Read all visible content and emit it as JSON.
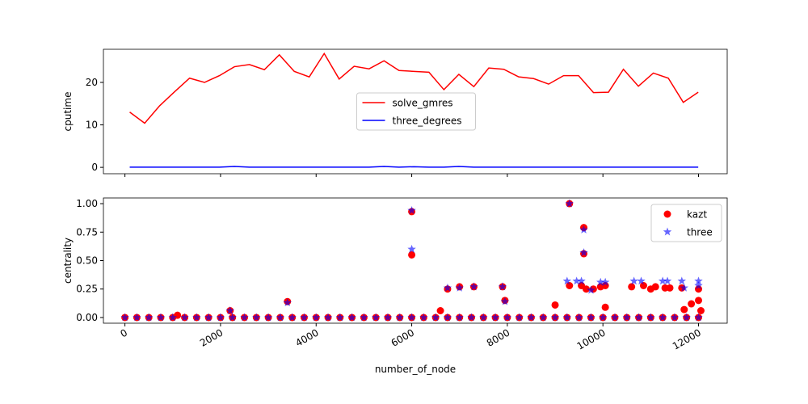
{
  "chart_data": [
    {
      "type": "line",
      "ylabel": "cputime",
      "legend": "center",
      "x": [
        100,
        413,
        726,
        1039,
        1352,
        1665,
        1978,
        2291,
        2604,
        2917,
        3230,
        3543,
        3856,
        4169,
        4482,
        4795,
        5108,
        5421,
        5734,
        6047,
        6360,
        6673,
        6986,
        7299,
        7612,
        7925,
        8238,
        8551,
        8864,
        9177,
        9490,
        9803,
        10116,
        10429,
        10742,
        11055,
        11368,
        11681,
        11994
      ],
      "series": [
        {
          "name": "solve_gmres",
          "color": "#ff0000",
          "values": [
            13,
            10.4,
            14.5,
            17.8,
            21,
            20,
            21.6,
            23.7,
            24.2,
            23,
            26.5,
            22.6,
            21.3,
            26.8,
            20.8,
            23.8,
            23.2,
            25.1,
            22.8,
            22.6,
            22.4,
            18.3,
            21.9,
            19,
            23.4,
            23.1,
            21.3,
            20.9,
            19.6,
            21.6,
            21.6,
            17.6,
            17.7,
            23.1,
            19.1,
            22.2,
            21,
            15.3,
            17.7
          ]
        },
        {
          "name": "three_degrees",
          "color": "#0000ff",
          "values": [
            0.05,
            0.05,
            0.05,
            0.05,
            0.05,
            0.05,
            0.05,
            0.2,
            0.05,
            0.05,
            0.05,
            0.05,
            0.05,
            0.05,
            0.05,
            0.05,
            0.05,
            0.2,
            0.05,
            0.15,
            0.05,
            0.05,
            0.2,
            0.05,
            0.05,
            0.05,
            0.05,
            0.05,
            0.05,
            0.05,
            0.05,
            0.05,
            0.05,
            0.05,
            0.05,
            0.05,
            0.05,
            0.05,
            0.05
          ]
        }
      ],
      "xlim": [
        -450,
        12600
      ],
      "xticks": [
        0,
        2000,
        4000,
        6000,
        8000,
        10000,
        12000
      ],
      "ylim": [
        -1.5,
        27.8
      ],
      "yticks": [
        0,
        10,
        20
      ]
    },
    {
      "type": "scatter",
      "xlabel": "number_of_node",
      "ylabel": "centrality",
      "legend": "upper right",
      "series": [
        {
          "name": "kazt",
          "color": "#ff0000",
          "marker": "circle",
          "x": [
            0,
            250,
            500,
            750,
            1000,
            1250,
            1500,
            1750,
            2000,
            2250,
            2500,
            2750,
            3000,
            3250,
            3500,
            3750,
            4000,
            4250,
            4500,
            4750,
            5000,
            5250,
            5500,
            5750,
            6000,
            6250,
            6500,
            6750,
            7000,
            7250,
            7500,
            7750,
            8000,
            8250,
            8500,
            8750,
            9000,
            9250,
            9500,
            9750,
            10000,
            10250,
            10500,
            10750,
            11000,
            11250,
            11500,
            11750,
            12000,
            1100,
            2200,
            3400,
            6000,
            6000,
            6600,
            6750,
            7000,
            7300,
            7900,
            7950,
            9000,
            9300,
            9300,
            9550,
            9600,
            9600,
            9650,
            9800,
            9950,
            10050,
            10050,
            10600,
            10850,
            11000,
            11100,
            11300,
            11400,
            11650,
            11700,
            11850,
            12000,
            12000,
            12050
          ],
          "values": [
            0,
            0,
            0,
            0,
            0,
            0,
            0,
            0,
            0,
            0,
            0,
            0,
            0,
            0,
            0,
            0,
            0,
            0,
            0,
            0,
            0,
            0,
            0,
            0,
            0,
            0,
            0,
            0,
            0,
            0,
            0,
            0,
            0,
            0,
            0,
            0,
            0,
            0,
            0,
            0,
            0,
            0,
            0,
            0,
            0,
            0,
            0,
            0,
            0,
            0.02,
            0.06,
            0.14,
            0.93,
            0.55,
            0.06,
            0.25,
            0.27,
            0.27,
            0.27,
            0.15,
            0.11,
            1.0,
            0.28,
            0.28,
            0.79,
            0.56,
            0.25,
            0.25,
            0.27,
            0.28,
            0.09,
            0.27,
            0.28,
            0.25,
            0.27,
            0.26,
            0.26,
            0.26,
            0.07,
            0.12,
            0.25,
            0.15,
            0.06
          ]
        },
        {
          "name": "three",
          "color": "#0000ff",
          "marker": "star",
          "x": [
            0,
            250,
            500,
            750,
            1000,
            1250,
            1500,
            1750,
            2000,
            2250,
            2500,
            2750,
            3000,
            3250,
            3500,
            3750,
            4000,
            4250,
            4500,
            4750,
            5000,
            5250,
            5500,
            5750,
            6000,
            6250,
            6500,
            6750,
            7000,
            7250,
            7500,
            7750,
            8000,
            8250,
            8500,
            8750,
            9000,
            9250,
            9500,
            9750,
            10000,
            10250,
            10500,
            10750,
            11000,
            11250,
            11500,
            11750,
            12000,
            2200,
            3400,
            6000,
            6000,
            6750,
            7000,
            7300,
            7900,
            7950,
            9300,
            9250,
            9450,
            9550,
            9600,
            9600,
            9750,
            9950,
            10050,
            10650,
            10800,
            11250,
            11350,
            11650,
            11700,
            12000,
            12000
          ],
          "values": [
            0,
            0,
            0,
            0,
            0,
            0,
            0,
            0,
            0,
            0,
            0,
            0,
            0,
            0,
            0,
            0,
            0,
            0,
            0,
            0,
            0,
            0,
            0,
            0,
            0,
            0,
            0,
            0,
            0,
            0,
            0,
            0,
            0,
            0,
            0,
            0,
            0,
            0,
            0,
            0,
            0,
            0,
            0,
            0,
            0,
            0,
            0,
            0,
            0,
            0.06,
            0.13,
            0.94,
            0.6,
            0.26,
            0.26,
            0.27,
            0.27,
            0.14,
            1.0,
            0.32,
            0.32,
            0.32,
            0.77,
            0.57,
            0.24,
            0.31,
            0.31,
            0.32,
            0.32,
            0.32,
            0.32,
            0.32,
            0.26,
            0.32,
            0.28
          ]
        }
      ],
      "xlim": [
        -450,
        12600
      ],
      "xticks": [
        0,
        2000,
        4000,
        6000,
        8000,
        10000,
        12000
      ],
      "ylim": [
        -0.05,
        1.05
      ],
      "yticks": [
        {
          "value": 0,
          "label": "0.00"
        },
        {
          "value": 0.25,
          "label": "0.25"
        },
        {
          "value": 0.5,
          "label": "0.50"
        },
        {
          "value": 0.75,
          "label": "0.75"
        },
        {
          "value": 1.0,
          "label": "1.00"
        }
      ]
    }
  ]
}
